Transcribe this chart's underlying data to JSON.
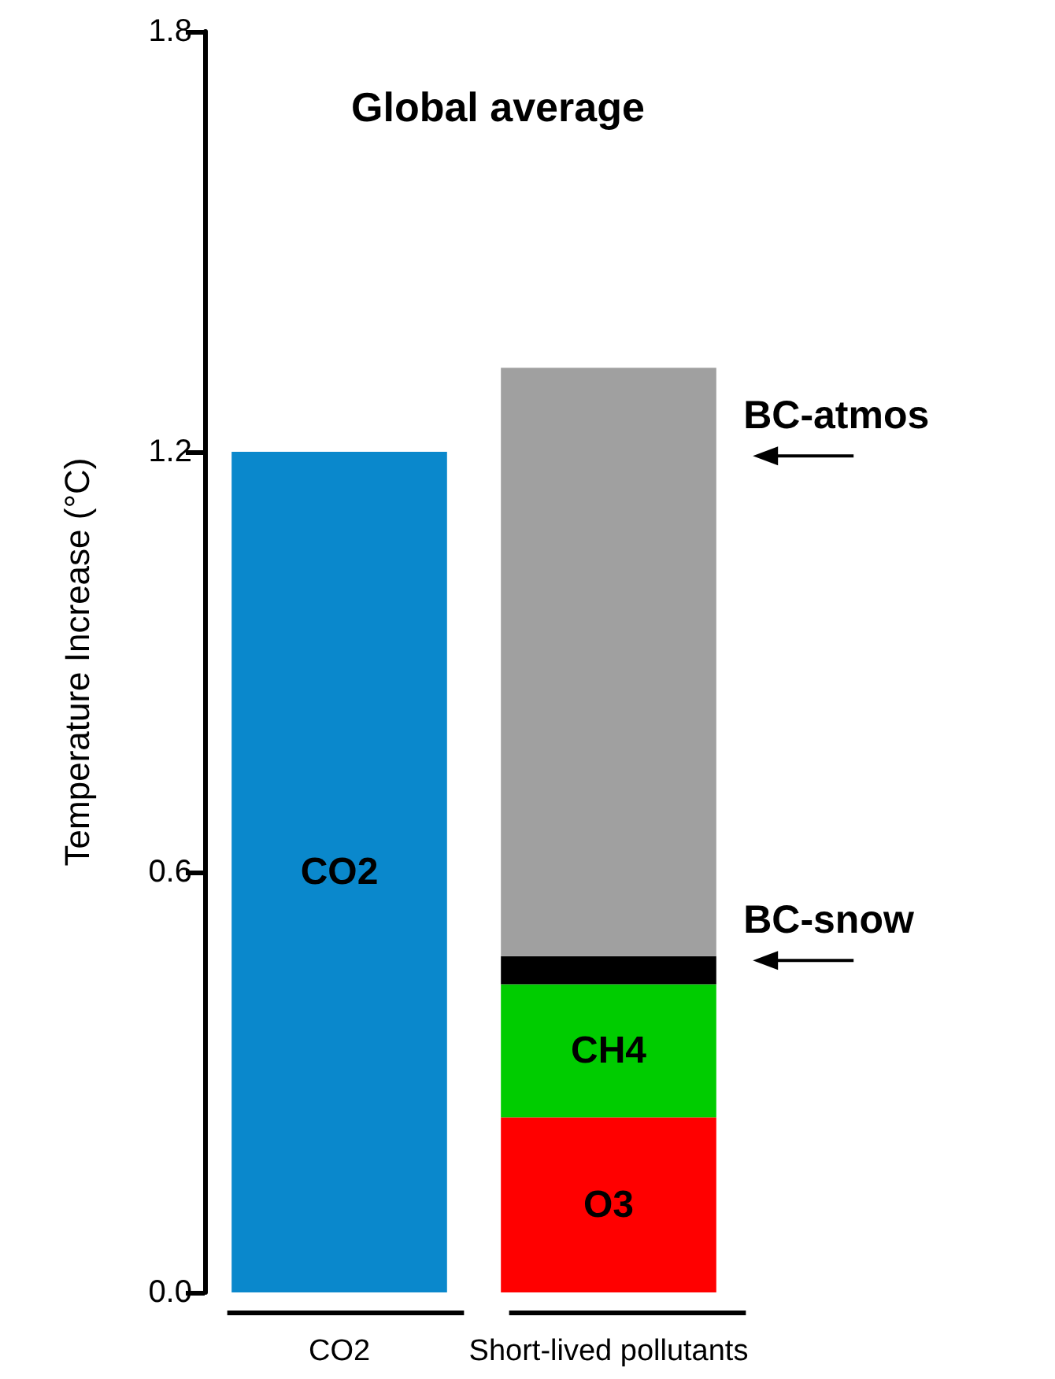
{
  "chart_data": {
    "type": "bar",
    "title": "Global average",
    "ylabel": "Temperature Increase (°C)",
    "categories": [
      "CO2",
      "Short-lived pollutants"
    ],
    "stacked": true,
    "series": [
      {
        "name": "CO2",
        "color": "#0a88cc",
        "values": [
          1.2,
          null
        ]
      },
      {
        "name": "O3",
        "color": "#ff0000",
        "values": [
          null,
          0.25
        ]
      },
      {
        "name": "CH4",
        "color": "#00cc00",
        "values": [
          null,
          0.19
        ]
      },
      {
        "name": "BC-snow",
        "color": "#000000",
        "values": [
          null,
          0.04
        ]
      },
      {
        "name": "BC-atmos",
        "color": "#a0a0a0",
        "values": [
          null,
          0.84
        ]
      }
    ],
    "ylim": [
      0,
      1.8
    ],
    "yticks": [
      {
        "value": 0,
        "label": "0.0"
      },
      0.6,
      1.2,
      1.8
    ],
    "legend": false,
    "grid": false
  }
}
